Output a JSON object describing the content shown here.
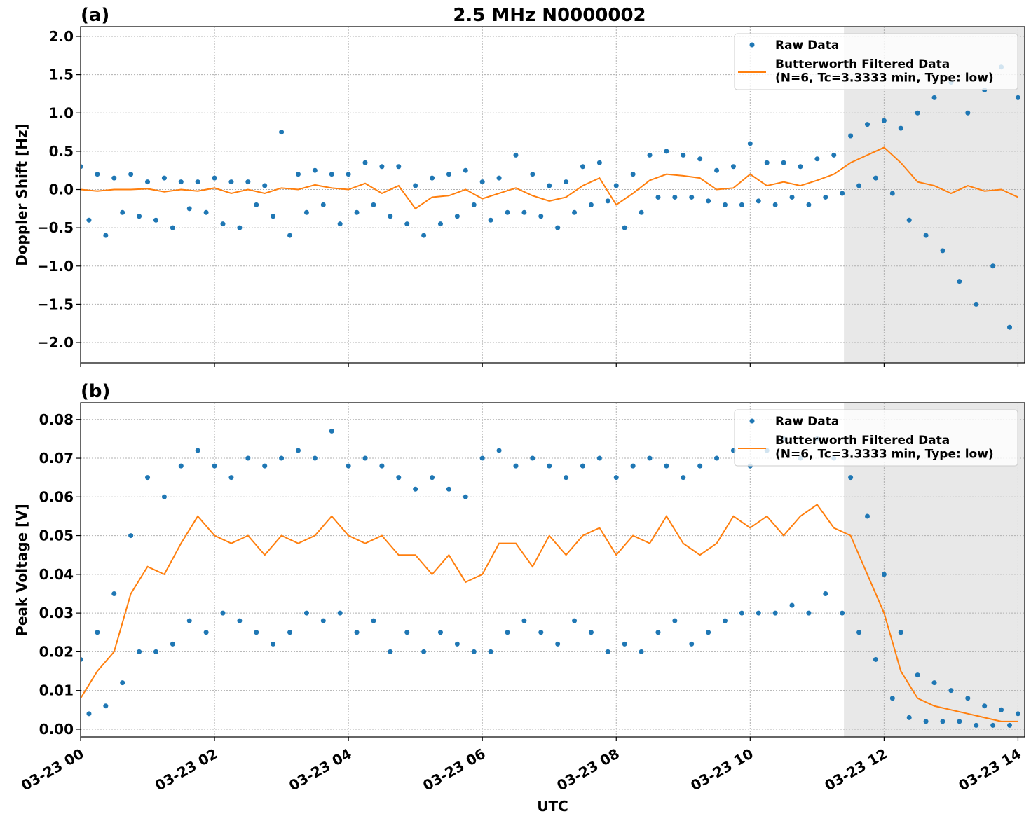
{
  "chart_data": [
    {
      "type": "scatter",
      "title": "2.5 MHz N0000002",
      "panel_label": "(a)",
      "ylabel": "Doppler Shift [Hz]",
      "xlim": [
        0,
        14.1
      ],
      "xticks": [
        0,
        2,
        4,
        6,
        8,
        10,
        12,
        14
      ],
      "ylim": [
        -2.265,
        2.128
      ],
      "yticks": [
        {
          "value": -2.0,
          "label": "−2.0"
        },
        {
          "value": -1.5,
          "label": "−1.5"
        },
        {
          "value": -1.0,
          "label": "−1.0"
        },
        {
          "value": -0.5,
          "label": "−0.5"
        },
        {
          "value": 0,
          "label": "0.0"
        },
        0.5,
        {
          "value": 1.0,
          "label": "1.0"
        },
        1.5,
        {
          "value": 2.0,
          "label": "2.0"
        }
      ],
      "grid": true,
      "legend": "upper right",
      "shaded_span": [
        11.4,
        14.1
      ],
      "series": [
        {
          "name": "Raw Data",
          "type": "scatter",
          "color": "#1f77b4",
          "x": [
            0,
            0.125,
            0.25,
            0.375,
            0.5,
            0.625,
            0.75,
            0.875,
            1,
            1.125,
            1.25,
            1.375,
            1.5,
            1.625,
            1.75,
            1.875,
            2,
            2.125,
            2.25,
            2.375,
            2.5,
            2.625,
            2.75,
            2.875,
            3,
            3.125,
            3.25,
            3.375,
            3.5,
            3.625,
            3.75,
            3.875,
            4,
            4.125,
            4.25,
            4.375,
            4.5,
            4.625,
            4.75,
            4.875,
            5,
            5.125,
            5.25,
            5.375,
            5.5,
            5.625,
            5.75,
            5.875,
            6,
            6.125,
            6.25,
            6.375,
            6.5,
            6.625,
            6.75,
            6.875,
            7,
            7.125,
            7.25,
            7.375,
            7.5,
            7.625,
            7.75,
            7.875,
            8,
            8.125,
            8.25,
            8.375,
            8.5,
            8.625,
            8.75,
            8.875,
            9,
            9.125,
            9.25,
            9.375,
            9.5,
            9.625,
            9.75,
            9.875,
            10,
            10.125,
            10.25,
            10.375,
            10.5,
            10.625,
            10.75,
            10.875,
            11,
            11.125,
            11.25,
            11.375,
            11.5,
            11.625,
            11.75,
            11.875,
            12,
            12.125,
            12.25,
            12.375,
            12.5,
            12.625,
            12.75,
            12.875,
            13,
            13.125,
            13.25,
            13.375,
            13.5,
            13.625,
            13.75,
            13.875,
            14
          ],
          "values": [
            0.3,
            -0.4,
            0.2,
            -0.6,
            0.15,
            -0.3,
            0.2,
            -0.35,
            0.1,
            -0.4,
            0.15,
            -0.5,
            0.1,
            -0.25,
            0.1,
            -0.3,
            0.15,
            -0.45,
            0.1,
            -0.5,
            0.1,
            -0.2,
            0.05,
            -0.35,
            0.75,
            -0.6,
            0.2,
            -0.3,
            0.25,
            -0.2,
            0.2,
            -0.45,
            0.2,
            -0.3,
            0.35,
            -0.2,
            0.3,
            -0.35,
            0.3,
            -0.45,
            0.05,
            -0.6,
            0.15,
            -0.45,
            0.2,
            -0.35,
            0.25,
            -0.2,
            0.1,
            -0.4,
            0.15,
            -0.3,
            0.45,
            -0.3,
            0.2,
            -0.35,
            0.05,
            -0.5,
            0.1,
            -0.3,
            0.3,
            -0.2,
            0.35,
            -0.15,
            0.05,
            -0.5,
            0.2,
            -0.3,
            0.45,
            -0.1,
            0.5,
            -0.1,
            0.45,
            -0.1,
            0.4,
            -0.15,
            0.25,
            -0.2,
            0.3,
            -0.2,
            0.6,
            -0.15,
            0.35,
            -0.2,
            0.35,
            -0.1,
            0.3,
            -0.2,
            0.4,
            -0.1,
            0.45,
            -0.05,
            0.7,
            0.05,
            0.85,
            0.15,
            0.9,
            -0.05,
            0.8,
            -0.4,
            1.0,
            -0.6,
            1.2,
            -0.8,
            1.4,
            -1.2,
            1.0,
            -1.5,
            1.3,
            -1.0,
            1.6,
            -1.8,
            1.2
          ]
        },
        {
          "name": "Butterworth Filtered Data\n(N=6, Tc=3.3333 min, Type: low)",
          "type": "line",
          "color": "#ff7f0e",
          "x": [
            0,
            0.25,
            0.5,
            0.75,
            1,
            1.25,
            1.5,
            1.75,
            2,
            2.25,
            2.5,
            2.75,
            3,
            3.25,
            3.5,
            3.75,
            4,
            4.25,
            4.5,
            4.75,
            5,
            5.25,
            5.5,
            5.75,
            6,
            6.25,
            6.5,
            6.75,
            7,
            7.25,
            7.5,
            7.75,
            8,
            8.25,
            8.5,
            8.75,
            9,
            9.25,
            9.5,
            9.75,
            10,
            10.25,
            10.5,
            10.75,
            11,
            11.25,
            11.5,
            11.75,
            12,
            12.25,
            12.5,
            12.75,
            13,
            13.25,
            13.5,
            13.75,
            14
          ],
          "values": [
            0,
            -0.02,
            0,
            0,
            0.01,
            -0.03,
            0,
            -0.02,
            0.02,
            -0.05,
            0,
            -0.05,
            0.02,
            0,
            0.06,
            0.02,
            0,
            0.08,
            -0.05,
            0.05,
            -0.25,
            -0.1,
            -0.08,
            0,
            -0.12,
            -0.05,
            0.02,
            -0.08,
            -0.15,
            -0.1,
            0.05,
            0.15,
            -0.2,
            -0.05,
            0.12,
            0.2,
            0.18,
            0.15,
            0,
            0.02,
            0.2,
            0.05,
            0.1,
            0.05,
            0.12,
            0.2,
            0.35,
            0.45,
            0.55,
            0.35,
            0.1,
            0.05,
            -0.05,
            0.05,
            -0.02,
            0,
            -0.1
          ]
        }
      ]
    },
    {
      "type": "scatter",
      "panel_label": "(b)",
      "ylabel": "Peak Voltage [V]",
      "xlabel": "UTC",
      "xlim": [
        0,
        14.1
      ],
      "xticks": [
        {
          "value": 0,
          "label": "03-23 00"
        },
        {
          "value": 2,
          "label": "03-23 02"
        },
        {
          "value": 4,
          "label": "03-23 04"
        },
        {
          "value": 6,
          "label": "03-23 06"
        },
        {
          "value": 8,
          "label": "03-23 08"
        },
        {
          "value": 10,
          "label": "03-23 10"
        },
        {
          "value": 12,
          "label": "03-23 12"
        },
        {
          "value": 14,
          "label": "03-23 14"
        }
      ],
      "ylim": [
        -0.002,
        0.0843
      ],
      "yticks": [
        {
          "value": 0,
          "label": "0.00"
        },
        0.01,
        0.02,
        0.03,
        0.04,
        0.05,
        0.06,
        0.07,
        0.08
      ],
      "grid": true,
      "legend": "upper right",
      "shaded_span": [
        11.4,
        14.1
      ],
      "series": [
        {
          "name": "Raw Data",
          "type": "scatter",
          "color": "#1f77b4",
          "x": [
            0,
            0.125,
            0.25,
            0.375,
            0.5,
            0.625,
            0.75,
            0.875,
            1,
            1.125,
            1.25,
            1.375,
            1.5,
            1.625,
            1.75,
            1.875,
            2,
            2.125,
            2.25,
            2.375,
            2.5,
            2.625,
            2.75,
            2.875,
            3,
            3.125,
            3.25,
            3.375,
            3.5,
            3.625,
            3.75,
            3.875,
            4,
            4.125,
            4.25,
            4.375,
            4.5,
            4.625,
            4.75,
            4.875,
            5,
            5.125,
            5.25,
            5.375,
            5.5,
            5.625,
            5.75,
            5.875,
            6,
            6.125,
            6.25,
            6.375,
            6.5,
            6.625,
            6.75,
            6.875,
            7,
            7.125,
            7.25,
            7.375,
            7.5,
            7.625,
            7.75,
            7.875,
            8,
            8.125,
            8.25,
            8.375,
            8.5,
            8.625,
            8.75,
            8.875,
            9,
            9.125,
            9.25,
            9.375,
            9.5,
            9.625,
            9.75,
            9.875,
            10,
            10.125,
            10.25,
            10.375,
            10.5,
            10.625,
            10.75,
            10.875,
            11,
            11.125,
            11.25,
            11.375,
            11.5,
            11.625,
            11.75,
            11.875,
            12,
            12.125,
            12.25,
            12.375,
            12.5,
            12.625,
            12.75,
            12.875,
            13,
            13.125,
            13.25,
            13.375,
            13.5,
            13.625,
            13.75,
            13.875,
            14
          ],
          "values": [
            0.018,
            0.004,
            0.025,
            0.006,
            0.035,
            0.012,
            0.05,
            0.02,
            0.065,
            0.02,
            0.06,
            0.022,
            0.068,
            0.028,
            0.072,
            0.025,
            0.068,
            0.03,
            0.065,
            0.028,
            0.07,
            0.025,
            0.068,
            0.022,
            0.07,
            0.025,
            0.072,
            0.03,
            0.07,
            0.028,
            0.077,
            0.03,
            0.068,
            0.025,
            0.07,
            0.028,
            0.068,
            0.02,
            0.065,
            0.025,
            0.062,
            0.02,
            0.065,
            0.025,
            0.062,
            0.022,
            0.06,
            0.02,
            0.07,
            0.02,
            0.072,
            0.025,
            0.068,
            0.028,
            0.07,
            0.025,
            0.068,
            0.022,
            0.065,
            0.028,
            0.068,
            0.025,
            0.07,
            0.02,
            0.065,
            0.022,
            0.068,
            0.02,
            0.07,
            0.025,
            0.068,
            0.028,
            0.065,
            0.022,
            0.068,
            0.025,
            0.07,
            0.028,
            0.072,
            0.03,
            0.068,
            0.03,
            0.072,
            0.03,
            0.075,
            0.032,
            0.07,
            0.03,
            0.075,
            0.035,
            0.07,
            0.03,
            0.065,
            0.025,
            0.055,
            0.018,
            0.04,
            0.008,
            0.025,
            0.003,
            0.014,
            0.002,
            0.012,
            0.002,
            0.01,
            0.002,
            0.008,
            0.001,
            0.006,
            0.001,
            0.005,
            0.001,
            0.004
          ]
        },
        {
          "name": "Butterworth Filtered Data\n(N=6, Tc=3.3333 min, Type: low)",
          "type": "line",
          "color": "#ff7f0e",
          "x": [
            0,
            0.25,
            0.5,
            0.75,
            1,
            1.25,
            1.5,
            1.75,
            2,
            2.25,
            2.5,
            2.75,
            3,
            3.25,
            3.5,
            3.75,
            4,
            4.25,
            4.5,
            4.75,
            5,
            5.25,
            5.5,
            5.75,
            6,
            6.25,
            6.5,
            6.75,
            7,
            7.25,
            7.5,
            7.75,
            8,
            8.25,
            8.5,
            8.75,
            9,
            9.25,
            9.5,
            9.75,
            10,
            10.25,
            10.5,
            10.75,
            11,
            11.25,
            11.5,
            11.75,
            12,
            12.25,
            12.5,
            12.75,
            13,
            13.25,
            13.5,
            13.75,
            14
          ],
          "values": [
            0.008,
            0.015,
            0.02,
            0.035,
            0.042,
            0.04,
            0.048,
            0.055,
            0.05,
            0.048,
            0.05,
            0.045,
            0.05,
            0.048,
            0.05,
            0.055,
            0.05,
            0.048,
            0.05,
            0.045,
            0.045,
            0.04,
            0.045,
            0.038,
            0.04,
            0.048,
            0.048,
            0.042,
            0.05,
            0.045,
            0.05,
            0.052,
            0.045,
            0.05,
            0.048,
            0.055,
            0.048,
            0.045,
            0.048,
            0.055,
            0.052,
            0.055,
            0.05,
            0.055,
            0.058,
            0.052,
            0.05,
            0.04,
            0.03,
            0.015,
            0.008,
            0.006,
            0.005,
            0.004,
            0.003,
            0.002,
            0.002
          ]
        }
      ]
    }
  ]
}
